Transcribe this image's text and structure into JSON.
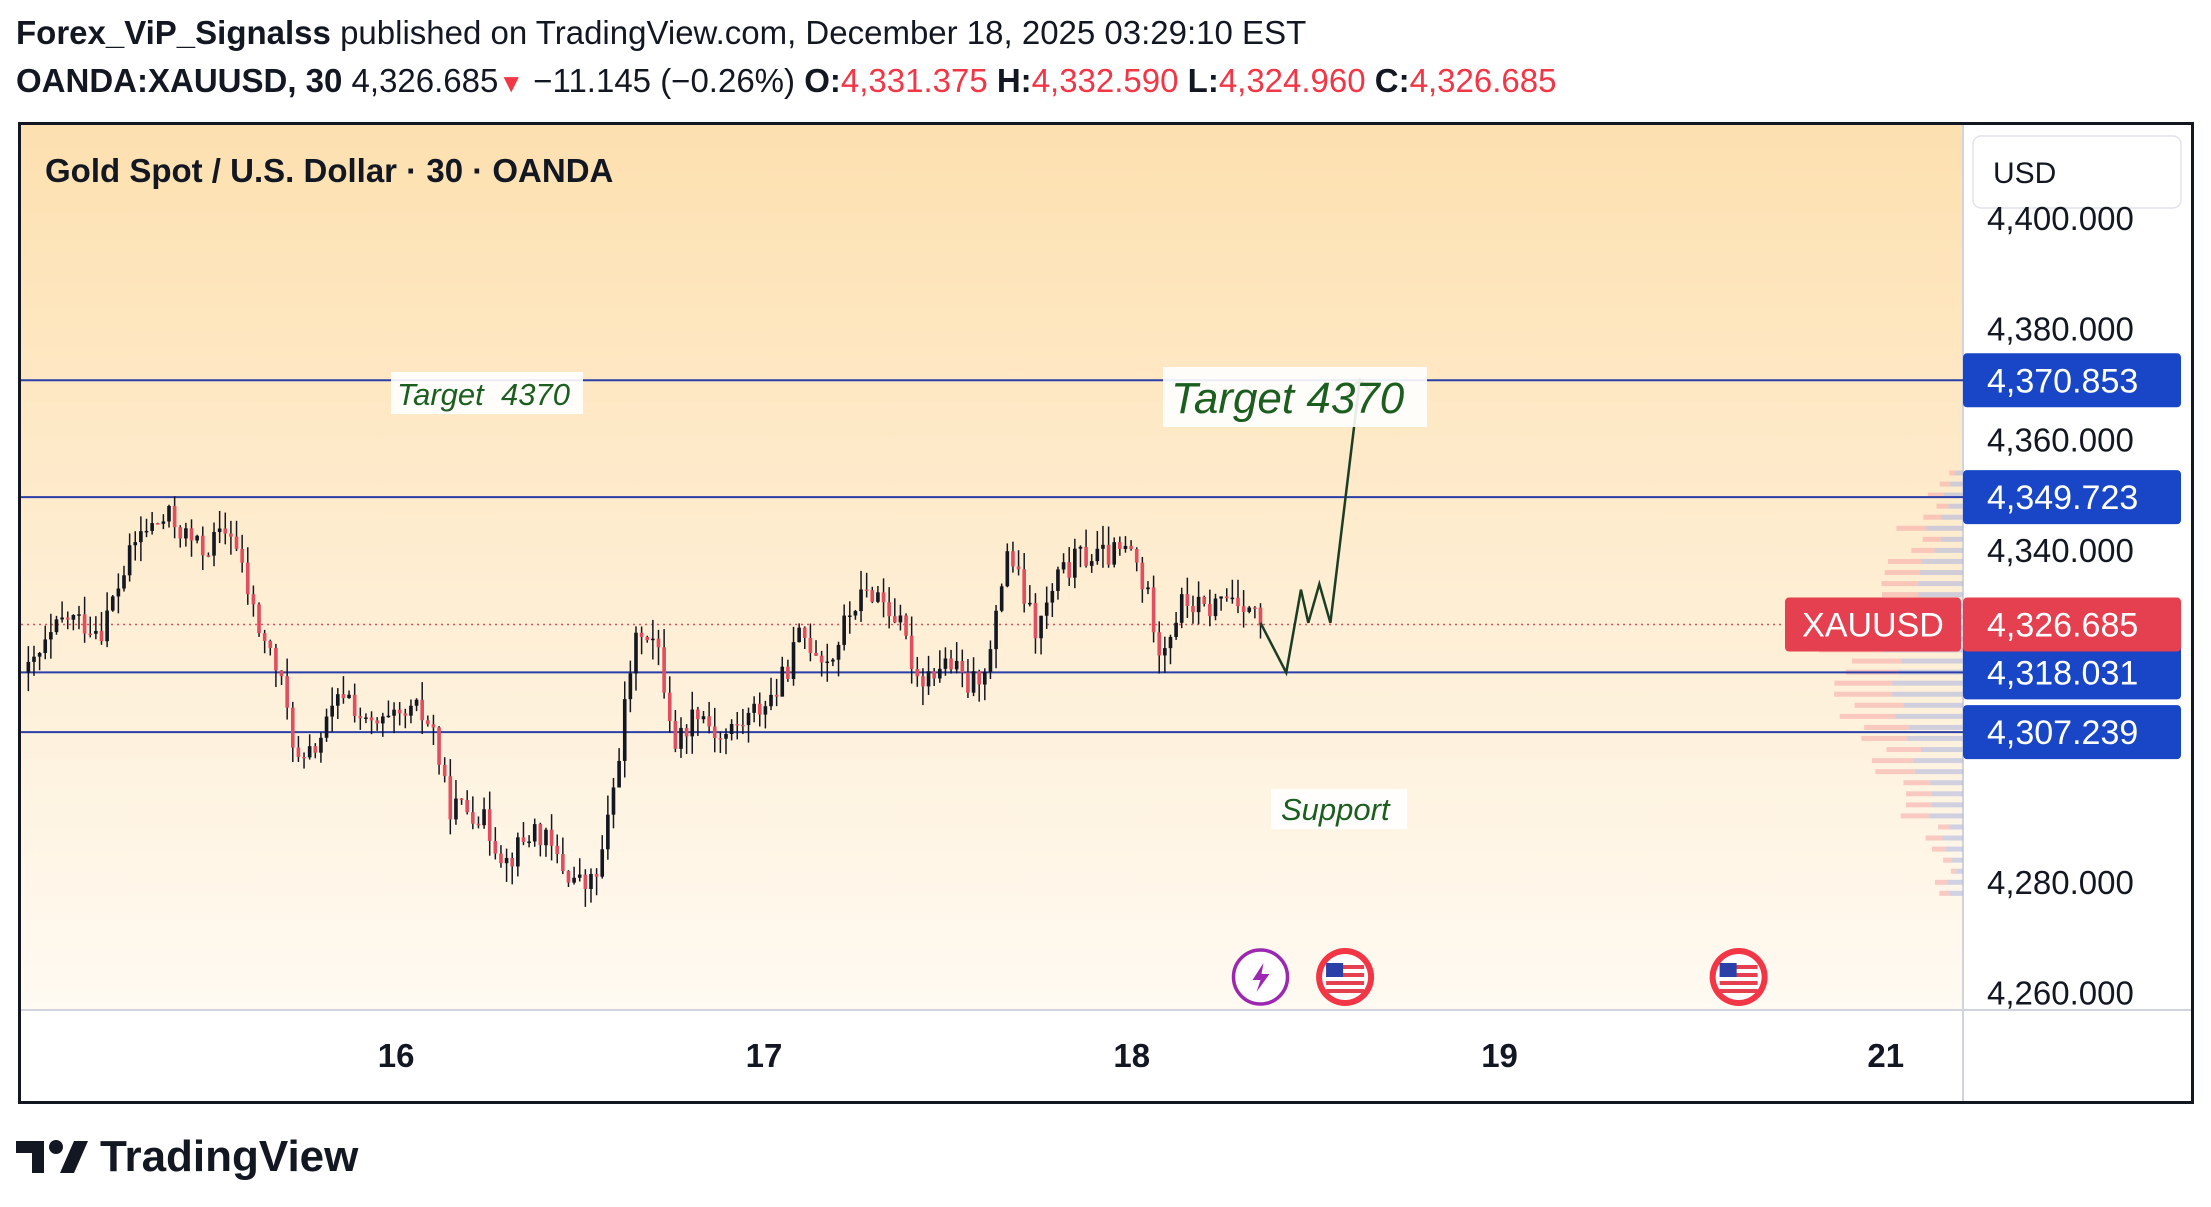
{
  "header": {
    "author": "Forex_ViP_Signalss",
    "published_text": "published on TradingView.com, December 18, 2025 03:29:10 EST",
    "symbol": "OANDA:XAUUSD, 30",
    "last_price": "4,326.685",
    "change_icon": "down-triangle-icon",
    "change": "−11.145 (−0.26%)",
    "open_label": "O:",
    "open": "4,331.375",
    "high_label": "H:",
    "high": "4,332.590",
    "low_label": "L:",
    "low": "4,324.960",
    "close_label": "C:",
    "close": "4,326.685"
  },
  "chart_data": {
    "type": "candlestick",
    "title": "Gold Spot / U.S. Dollar · 30 · OANDA",
    "currency": "USD",
    "y_ticks": [
      {
        "label": "4,400.000",
        "value": 4400
      },
      {
        "label": "4,380.000",
        "value": 4380
      },
      {
        "label": "4,360.000",
        "value": 4360
      },
      {
        "label": "4,340.000",
        "value": 4340
      },
      {
        "label": "4,280.000",
        "value": 4280
      },
      {
        "label": "4,260.000",
        "value": 4260
      }
    ],
    "x_ticks": [
      {
        "label": "16",
        "day": 16
      },
      {
        "label": "17",
        "day": 17
      },
      {
        "label": "18",
        "day": 18
      },
      {
        "label": "19",
        "day": 19
      },
      {
        "label": "21",
        "day": 20.05
      }
    ],
    "ylim": [
      4257,
      4417
    ],
    "xlim": [
      14.98,
      20.26
    ],
    "horizontal_levels": [
      {
        "value": 4370.853,
        "label": "4,370.853"
      },
      {
        "value": 4349.723,
        "label": "4,349.723"
      },
      {
        "value": 4318.031,
        "label": "4,318.031"
      },
      {
        "value": 4307.239,
        "label": "4,307.239"
      }
    ],
    "current_price": {
      "symbol": "XAUUSD",
      "value": 4326.685,
      "label": "4,326.685"
    },
    "annotations": [
      {
        "text": "Target  4370",
        "style": "small-box"
      },
      {
        "text": "Target 4370",
        "style": "large-box"
      },
      {
        "text": "Support",
        "style": "small-box"
      }
    ],
    "projection_path": [
      {
        "day": 18.35,
        "price": 4327
      },
      {
        "day": 18.42,
        "price": 4318
      },
      {
        "day": 18.46,
        "price": 4333
      },
      {
        "day": 18.48,
        "price": 4327
      },
      {
        "day": 18.51,
        "price": 4334
      },
      {
        "day": 18.54,
        "price": 4327
      },
      {
        "day": 18.62,
        "price": 4371
      }
    ],
    "events": [
      {
        "icon": "lightning-icon",
        "day": 18.35
      },
      {
        "icon": "us-flag-icon",
        "day": 18.58
      },
      {
        "icon": "us-flag-icon",
        "day": 19.65
      }
    ],
    "anchors": [
      {
        "day": 15.0,
        "price": 4318
      },
      {
        "day": 15.1,
        "price": 4328
      },
      {
        "day": 15.2,
        "price": 4326
      },
      {
        "day": 15.3,
        "price": 4343
      },
      {
        "day": 15.38,
        "price": 4346
      },
      {
        "day": 15.47,
        "price": 4340
      },
      {
        "day": 15.55,
        "price": 4344
      },
      {
        "day": 15.62,
        "price": 4327
      },
      {
        "day": 15.68,
        "price": 4318
      },
      {
        "day": 15.74,
        "price": 4300
      },
      {
        "day": 15.8,
        "price": 4307
      },
      {
        "day": 15.86,
        "price": 4315
      },
      {
        "day": 15.92,
        "price": 4308
      },
      {
        "day": 16.0,
        "price": 4309
      },
      {
        "day": 16.06,
        "price": 4311
      },
      {
        "day": 16.1,
        "price": 4308
      },
      {
        "day": 16.14,
        "price": 4294
      },
      {
        "day": 16.22,
        "price": 4293
      },
      {
        "day": 16.3,
        "price": 4284
      },
      {
        "day": 16.38,
        "price": 4290
      },
      {
        "day": 16.46,
        "price": 4282
      },
      {
        "day": 16.52,
        "price": 4279
      },
      {
        "day": 16.55,
        "price": 4282
      },
      {
        "day": 16.58,
        "price": 4292
      },
      {
        "day": 16.64,
        "price": 4320
      },
      {
        "day": 16.67,
        "price": 4327
      },
      {
        "day": 16.71,
        "price": 4322
      },
      {
        "day": 16.76,
        "price": 4305
      },
      {
        "day": 16.82,
        "price": 4312
      },
      {
        "day": 16.88,
        "price": 4306
      },
      {
        "day": 16.96,
        "price": 4310
      },
      {
        "day": 17.04,
        "price": 4315
      },
      {
        "day": 17.1,
        "price": 4325
      },
      {
        "day": 17.18,
        "price": 4320
      },
      {
        "day": 17.24,
        "price": 4330
      },
      {
        "day": 17.3,
        "price": 4333
      },
      {
        "day": 17.36,
        "price": 4328
      },
      {
        "day": 17.42,
        "price": 4317
      },
      {
        "day": 17.5,
        "price": 4320
      },
      {
        "day": 17.56,
        "price": 4315
      },
      {
        "day": 17.62,
        "price": 4322
      },
      {
        "day": 17.66,
        "price": 4341
      },
      {
        "day": 17.7,
        "price": 4333
      },
      {
        "day": 17.74,
        "price": 4325
      },
      {
        "day": 17.8,
        "price": 4335
      },
      {
        "day": 17.86,
        "price": 4339
      },
      {
        "day": 17.92,
        "price": 4339
      },
      {
        "day": 18.0,
        "price": 4340
      },
      {
        "day": 18.05,
        "price": 4330
      },
      {
        "day": 18.08,
        "price": 4322
      },
      {
        "day": 18.14,
        "price": 4331
      },
      {
        "day": 18.2,
        "price": 4329
      },
      {
        "day": 18.26,
        "price": 4332
      },
      {
        "day": 18.31,
        "price": 4331
      },
      {
        "day": 18.35,
        "price": 4326.685
      }
    ],
    "candle_count": 220,
    "volume_profile": "horizontal-histogram-right"
  },
  "brand": {
    "name": "TradingView"
  },
  "colors": {
    "bull_body": "#131722",
    "bear_body": "#e04f5f",
    "level_line": "#2a3fa8",
    "price_tag_blue": "#1846c7",
    "price_tag_red": "#e5404f",
    "annotation_text": "#1b5e20",
    "bg_top": "#fde0b0",
    "bg_bottom": "#fffaf2"
  }
}
